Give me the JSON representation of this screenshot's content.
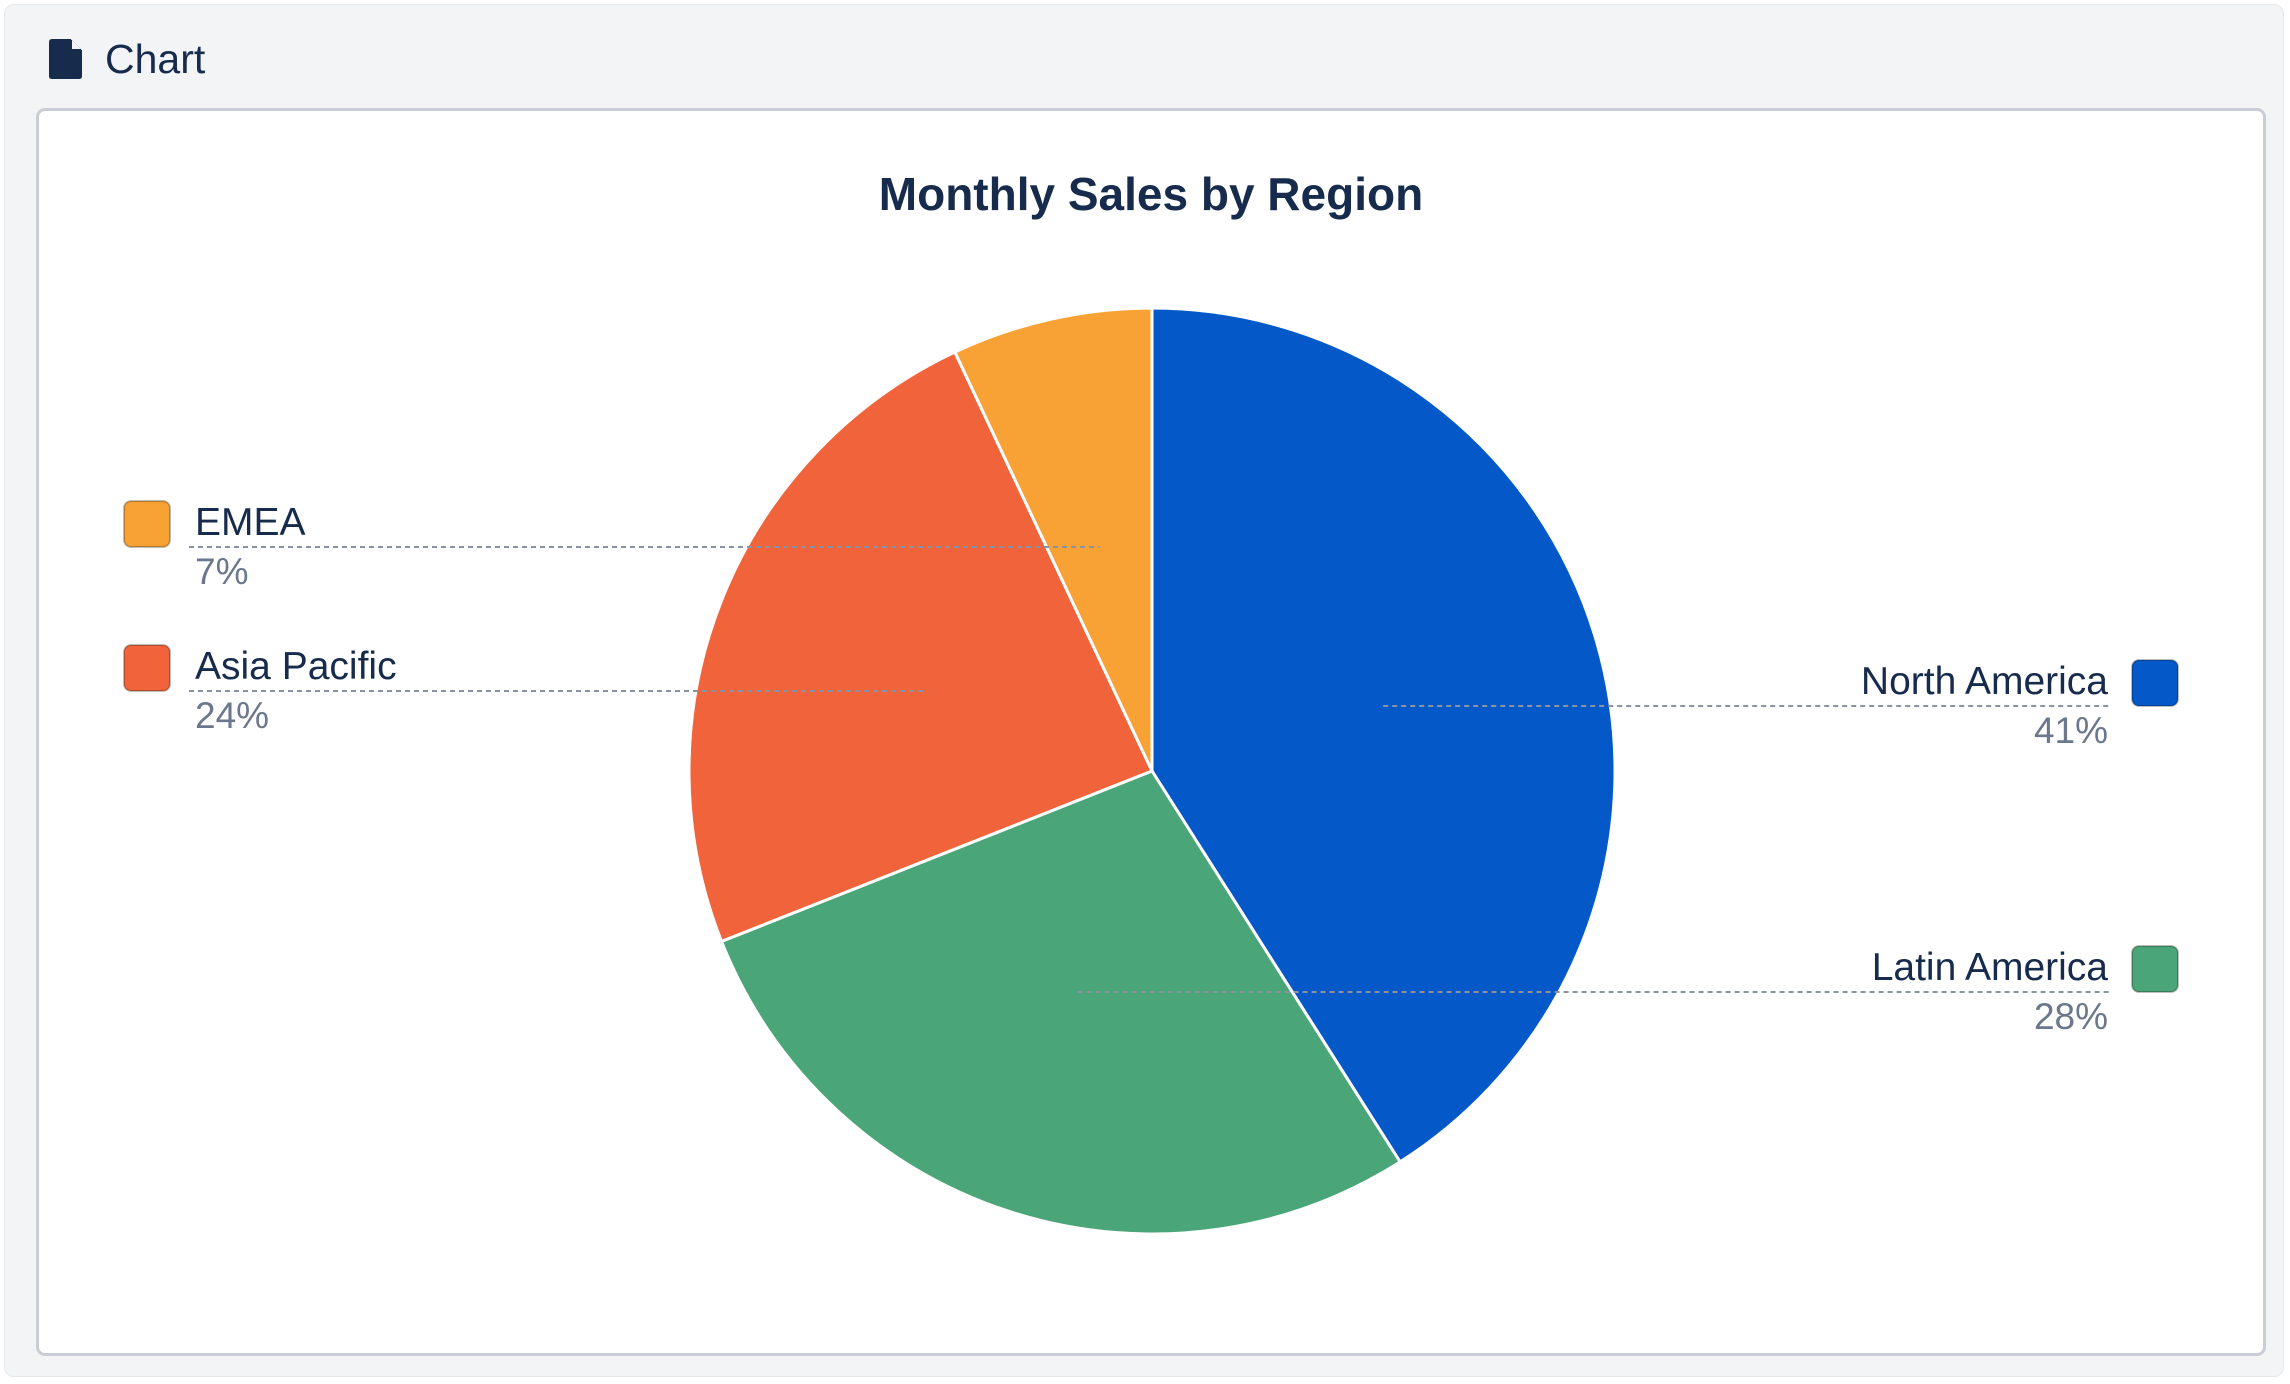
{
  "header": {
    "title": "Chart",
    "icon": "document-icon"
  },
  "colors": {
    "background": "#f3f4f6",
    "card_border": "#c9ced6",
    "title_text": "#172b4d",
    "secondary_text": "#6b778c",
    "leader_line": "#8993a4"
  },
  "chart_data": {
    "type": "pie",
    "title": "Monthly Sales by Region",
    "start_angle_deg": 0,
    "direction": "clockwise",
    "legend_placement": "left-and-right",
    "slices": [
      {
        "label": "North America",
        "value": 41,
        "percent_label": "41%",
        "color": "#0558c8",
        "legend_side": "right"
      },
      {
        "label": "Latin America",
        "value": 28,
        "percent_label": "28%",
        "color": "#4aa678",
        "legend_side": "right"
      },
      {
        "label": "Asia Pacific",
        "value": 24,
        "percent_label": "24%",
        "color": "#f0633b",
        "legend_side": "left"
      },
      {
        "label": "EMEA",
        "value": 7,
        "percent_label": "7%",
        "color": "#f8a236",
        "legend_side": "left"
      }
    ]
  }
}
